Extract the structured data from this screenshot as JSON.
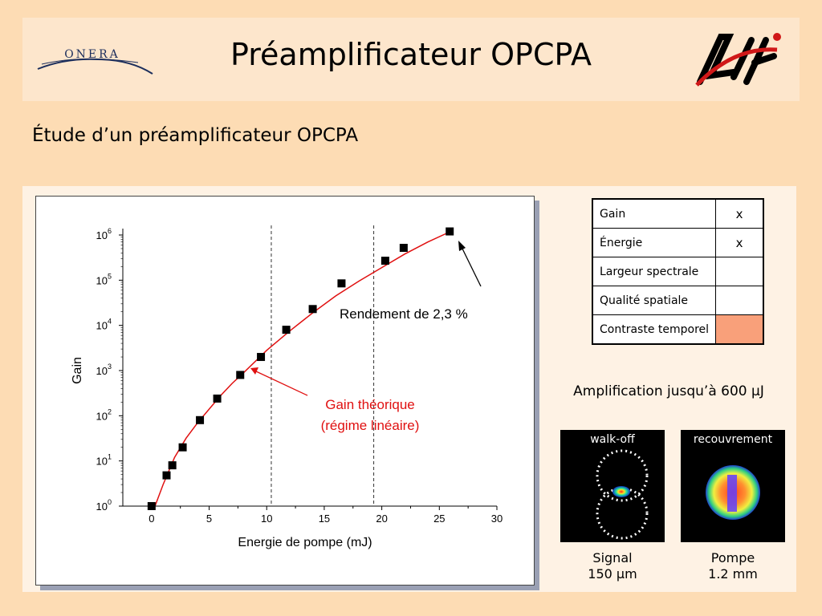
{
  "header": {
    "title": "Préamplificateur OPCPA",
    "logo_left_text": "ONERA"
  },
  "subtitle": "Étude d’un préamplificateur OPCPA",
  "chart_data": {
    "type": "scatter",
    "title": "",
    "xlabel": "Energie de pompe (mJ)",
    "ylabel": "Gain",
    "xlim": [
      -2.5,
      30
    ],
    "ylim": [
      1,
      1000000
    ],
    "yscale": "log",
    "x_ticks": [
      0,
      5,
      10,
      15,
      20,
      25,
      30
    ],
    "y_ticks": [
      {
        "base": "10",
        "exp": "0",
        "value": 1
      },
      {
        "base": "10",
        "exp": "1",
        "value": 10
      },
      {
        "base": "10",
        "exp": "2",
        "value": 100
      },
      {
        "base": "10",
        "exp": "3",
        "value": 1000
      },
      {
        "base": "10",
        "exp": "4",
        "value": 10000
      },
      {
        "base": "10",
        "exp": "5",
        "value": 100000
      },
      {
        "base": "10",
        "exp": "6",
        "value": 1000000
      }
    ],
    "series": [
      {
        "points": [
          {
            "x": 0,
            "y": 1
          },
          {
            "x": 1.3,
            "y": 4.8
          },
          {
            "x": 1.8,
            "y": 8
          },
          {
            "x": 2.7,
            "y": 20
          },
          {
            "x": 4.2,
            "y": 80
          },
          {
            "x": 5.7,
            "y": 240
          },
          {
            "x": 7.7,
            "y": 800
          },
          {
            "x": 9.5,
            "y": 2000
          },
          {
            "x": 11.7,
            "y": 8000
          },
          {
            "x": 14,
            "y": 23000
          },
          {
            "x": 16.5,
            "y": 85000
          },
          {
            "x": 20.3,
            "y": 270000
          },
          {
            "x": 21.9,
            "y": 520000
          },
          {
            "x": 25.9,
            "y": 1200000
          }
        ]
      },
      {
        "name": "Gain théorique (régime linéaire)",
        "color": "#e01010",
        "points": [
          {
            "x": 0.3,
            "y": 1
          },
          {
            "x": 1,
            "y": 3
          },
          {
            "x": 2,
            "y": 12
          },
          {
            "x": 3,
            "y": 32
          },
          {
            "x": 4,
            "y": 70
          },
          {
            "x": 5,
            "y": 140
          },
          {
            "x": 6,
            "y": 280
          },
          {
            "x": 7,
            "y": 520
          },
          {
            "x": 8,
            "y": 900
          },
          {
            "x": 10,
            "y": 2800
          },
          {
            "x": 12,
            "y": 7500
          },
          {
            "x": 14,
            "y": 19000
          },
          {
            "x": 16,
            "y": 45000
          },
          {
            "x": 18,
            "y": 95000
          },
          {
            "x": 20,
            "y": 190000
          },
          {
            "x": 22,
            "y": 380000
          },
          {
            "x": 24,
            "y": 700000
          },
          {
            "x": 26,
            "y": 1200000
          }
        ]
      }
    ],
    "vlines": [
      10.4,
      19.3
    ],
    "annotations": {
      "efficiency": "Rendement de 2,3 %",
      "theory_line1": "Gain théorique",
      "theory_line2": "(régime linéaire)"
    }
  },
  "table": {
    "rows": [
      {
        "label": "Gain",
        "mark": "x",
        "highlight": false
      },
      {
        "label": "Énergie",
        "mark": "x",
        "highlight": false
      },
      {
        "label": "Largeur spectrale",
        "mark": "",
        "highlight": false
      },
      {
        "label": "Qualité spatiale",
        "mark": "",
        "highlight": false
      },
      {
        "label": "Contraste temporel",
        "mark": "",
        "highlight": true
      }
    ],
    "highlight_color": "#f9a07a"
  },
  "amplification_text": "Amplification jusqu’à 600 µJ",
  "beam_images": [
    {
      "label": "walk-off",
      "caption_line1": "Signal",
      "caption_line2": "150 µm"
    },
    {
      "label": "recouvrement",
      "caption_line1": "Pompe",
      "caption_line2": "1.2 mm"
    }
  ]
}
